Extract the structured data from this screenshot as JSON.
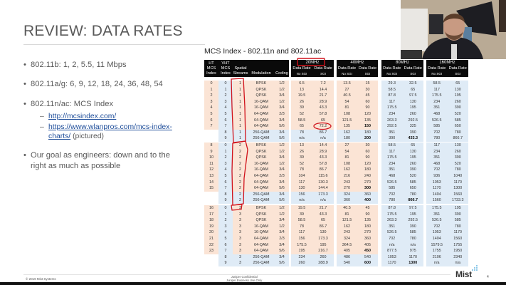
{
  "slide": {
    "title": "REVIEW: DATA RATES",
    "bullets": [
      {
        "text": "802.11b: 1, 2, 5.5, 11 Mbps"
      },
      {
        "text": "802.11a/g: 6, 9, 12, 18, 24, 36, 48, 54"
      },
      {
        "text": "802.11n/ac: MCS Index"
      },
      {
        "text": "Our goal as engineers: down and to the"
      },
      {
        "text": "right as much as possible"
      }
    ],
    "links": [
      {
        "text": "http://mcsindex.com/"
      },
      {
        "text": "https://www.wlanpros.com/mcs-index-",
        "text2": "charts/",
        "suffix": " (pictured)"
      }
    ],
    "bullet_glyph": "•",
    "dash_glyph": "–"
  },
  "table": {
    "title": "MCS Index - 802.11n and 802.11ac",
    "headers": {
      "ht": [
        "HT",
        "MCS",
        "Index"
      ],
      "vht": [
        "VHT",
        "MCS",
        "Index"
      ],
      "ss": [
        "Spatial",
        "Streams"
      ],
      "mod": "Modulation",
      "coding": "Coding",
      "groups": [
        "20MHz",
        "40MHz",
        "80MHz",
        "160MHz"
      ],
      "rate_top": "Data Rate",
      "nosgi": "No SGI",
      "sgi": "SGI"
    },
    "blocks": [
      {
        "rows": [
          [
            "0",
            "0",
            "1",
            "BPSK",
            "1/2",
            "6.5",
            "7.2",
            "13.5",
            "15",
            "29.3",
            "32.5",
            "58.5",
            "65"
          ],
          [
            "1",
            "1",
            "1",
            "QPSK",
            "1/2",
            "13",
            "14.4",
            "27",
            "30",
            "58.5",
            "65",
            "117",
            "130"
          ],
          [
            "2",
            "2",
            "1",
            "QPSK",
            "3/4",
            "19.5",
            "21.7",
            "40.5",
            "45",
            "87.8",
            "97.5",
            "175.5",
            "195"
          ],
          [
            "3",
            "3",
            "1",
            "16-QAM",
            "1/2",
            "26",
            "28.9",
            "54",
            "60",
            "117",
            "130",
            "234",
            "260"
          ],
          [
            "4",
            "4",
            "1",
            "16-QAM",
            "3/4",
            "39",
            "43.3",
            "81",
            "90",
            "175.5",
            "195",
            "351",
            "390"
          ],
          [
            "5",
            "5",
            "1",
            "64-QAM",
            "2/3",
            "52",
            "57.8",
            "108",
            "120",
            "234",
            "260",
            "468",
            "520"
          ],
          [
            "6",
            "6",
            "1",
            "64-QAM",
            "3/4",
            "58.5",
            "65",
            "121.5",
            "135",
            "263.3",
            "292.5",
            "526.5",
            "585"
          ],
          [
            "7",
            "7",
            "1",
            "64-QAM",
            "5/6",
            "65",
            "72.2",
            "135",
            "150",
            "292.5",
            "325",
            "585",
            "650"
          ],
          [
            "",
            "8",
            "1",
            "256-QAM",
            "3/4",
            "78",
            "86.7",
            "162",
            "180",
            "351",
            "390",
            "702",
            "780"
          ],
          [
            "",
            "9",
            "1",
            "256-QAM",
            "5/6",
            "n/a",
            "n/a",
            "180",
            "200",
            "390",
            "433.3",
            "780",
            "866.7"
          ]
        ]
      },
      {
        "rows": [
          [
            "8",
            "0",
            "2",
            "BPSK",
            "1/2",
            "13",
            "14.4",
            "27",
            "30",
            "58.5",
            "65",
            "117",
            "130"
          ],
          [
            "9",
            "1",
            "2",
            "QPSK",
            "1/2",
            "26",
            "28.9",
            "54",
            "60",
            "117",
            "130",
            "234",
            "260"
          ],
          [
            "10",
            "2",
            "2",
            "QPSK",
            "3/4",
            "39",
            "43.3",
            "81",
            "90",
            "175.5",
            "195",
            "351",
            "390"
          ],
          [
            "11",
            "3",
            "2",
            "16-QAM",
            "1/2",
            "52",
            "57.8",
            "108",
            "120",
            "234",
            "260",
            "468",
            "520"
          ],
          [
            "12",
            "4",
            "2",
            "16-QAM",
            "3/4",
            "78",
            "86.7",
            "162",
            "180",
            "351",
            "390",
            "702",
            "780"
          ],
          [
            "13",
            "5",
            "2",
            "64-QAM",
            "2/3",
            "104",
            "115.6",
            "216",
            "240",
            "468",
            "520",
            "936",
            "1040"
          ],
          [
            "14",
            "6",
            "2",
            "64-QAM",
            "3/4",
            "117",
            "130.3",
            "243",
            "270",
            "526.5",
            "585",
            "1053",
            "1170"
          ],
          [
            "15",
            "7",
            "2",
            "64-QAM",
            "5/6",
            "130",
            "144.4",
            "270",
            "300",
            "585",
            "650",
            "1170",
            "1300"
          ],
          [
            "",
            "8",
            "2",
            "256-QAM",
            "3/4",
            "156",
            "173.3",
            "324",
            "360",
            "702",
            "780",
            "1404",
            "1560"
          ],
          [
            "",
            "9",
            "2",
            "256-QAM",
            "5/6",
            "n/a",
            "n/a",
            "360",
            "400",
            "780",
            "866.7",
            "1560",
            "1733.3"
          ]
        ]
      },
      {
        "rows": [
          [
            "16",
            "0",
            "3",
            "BPSK",
            "1/2",
            "19.5",
            "21.7",
            "40.5",
            "45",
            "87.8",
            "97.5",
            "175.5",
            "195"
          ],
          [
            "17",
            "1",
            "3",
            "QPSK",
            "1/2",
            "39",
            "43.3",
            "81",
            "90",
            "175.5",
            "195",
            "351",
            "390"
          ],
          [
            "18",
            "2",
            "3",
            "QPSK",
            "3/4",
            "58.5",
            "65",
            "121.5",
            "135",
            "263.3",
            "292.5",
            "526.5",
            "585"
          ],
          [
            "19",
            "3",
            "3",
            "16-QAM",
            "1/2",
            "78",
            "86.7",
            "162",
            "180",
            "351",
            "390",
            "702",
            "780"
          ],
          [
            "20",
            "4",
            "3",
            "16-QAM",
            "3/4",
            "117",
            "130",
            "243",
            "270",
            "526.5",
            "585",
            "1053",
            "1170"
          ],
          [
            "21",
            "5",
            "3",
            "64-QAM",
            "2/3",
            "156",
            "173.3",
            "324",
            "360",
            "702",
            "780",
            "1404",
            "1560"
          ],
          [
            "22",
            "6",
            "3",
            "64-QAM",
            "3/4",
            "175.5",
            "195",
            "364.5",
            "405",
            "n/a",
            "n/a",
            "1579.5",
            "1755"
          ],
          [
            "23",
            "7",
            "3",
            "64-QAM",
            "5/6",
            "195",
            "216.7",
            "405",
            "450",
            "877.5",
            "975",
            "1755",
            "1950"
          ],
          [
            "",
            "8",
            "3",
            "256-QAM",
            "3/4",
            "234",
            "260",
            "486",
            "540",
            "1053",
            "1170",
            "2106",
            "2340"
          ],
          [
            "",
            "9",
            "3",
            "256-QAM",
            "5/6",
            "260",
            "288.9",
            "540",
            "600",
            "1170",
            "1300",
            "n/a",
            "n/a"
          ]
        ]
      }
    ],
    "bold_cells": [
      [
        7,
        8
      ],
      [
        9,
        8
      ],
      [
        9,
        10
      ]
    ],
    "colors": {
      "ht_rows": "#fbe4d5",
      "vht_rows": "#dfebf6",
      "header": "#0a0a0a",
      "annotation": "#d0121b"
    }
  },
  "footer": {
    "copyright": "© 2019 Mist Systems",
    "confidential_1": "Juniper Confidential",
    "confidential_2": "Juniper Business Use Only",
    "logo": "Mist",
    "page_number": "4"
  }
}
